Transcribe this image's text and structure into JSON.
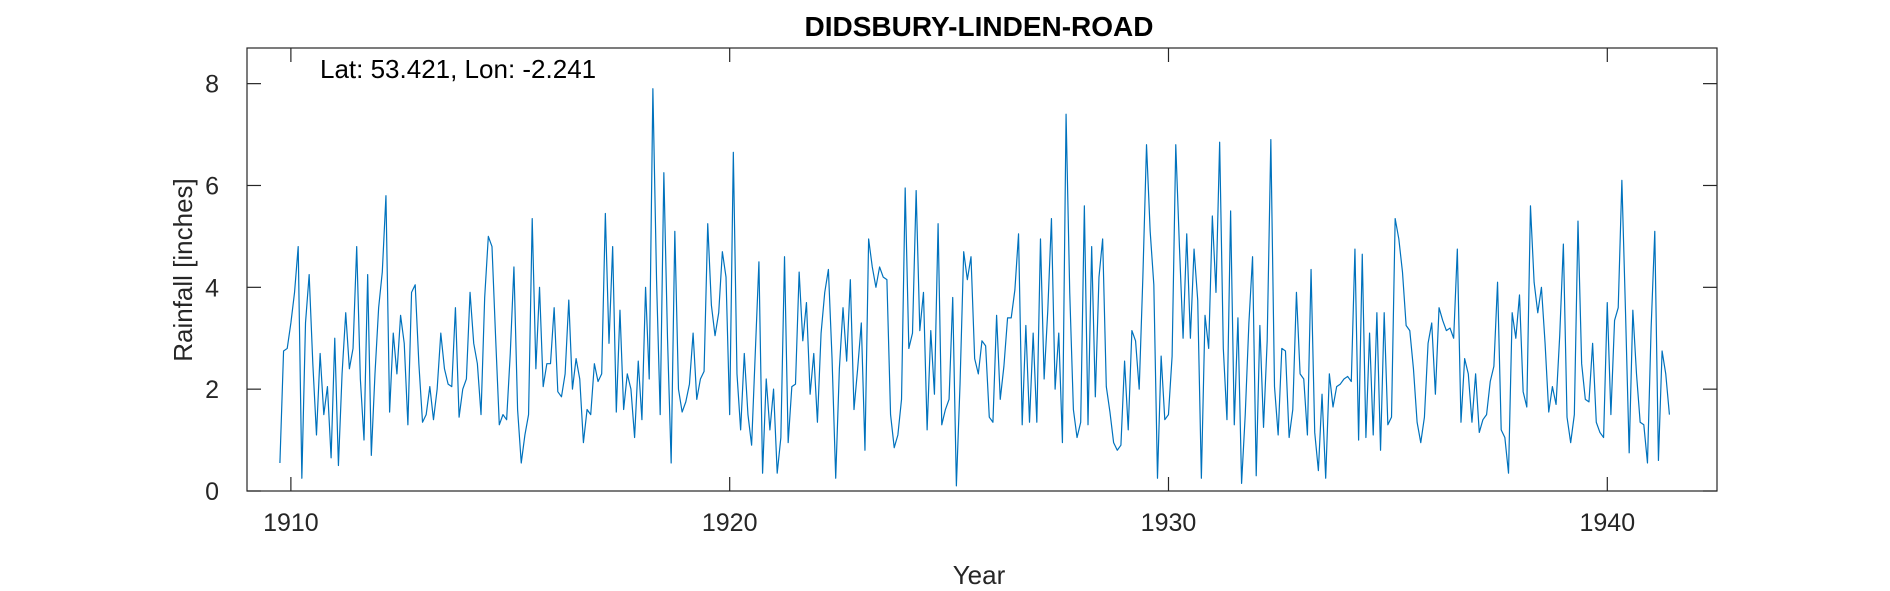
{
  "chart_data": {
    "type": "line",
    "title": "DIDSBURY-LINDEN-ROAD",
    "xlabel": "Year",
    "ylabel": "Rainfall [inches]",
    "annotation": "Lat: 53.421, Lon: -2.241",
    "xlim": [
      1909,
      1942.5
    ],
    "ylim": [
      0,
      8.7
    ],
    "xticks": [
      1910,
      1920,
      1930,
      1940
    ],
    "yticks": [
      0,
      2,
      4,
      6,
      8
    ],
    "grid": false,
    "line_color": "#0072bd",
    "series": [
      {
        "x_start": 1909.75,
        "x_step": 0.08333,
        "values": [
          0.55,
          2.75,
          2.8,
          3.3,
          3.9,
          4.8,
          0.25,
          3.3,
          4.25,
          2.5,
          1.1,
          2.7,
          1.5,
          2.05,
          0.65,
          3.0,
          0.5,
          2.3,
          3.5,
          2.4,
          2.8,
          4.8,
          2.2,
          1.0,
          4.25,
          0.7,
          2.3,
          3.6,
          4.3,
          5.8,
          1.55,
          3.1,
          2.3,
          3.45,
          2.9,
          1.3,
          3.9,
          4.05,
          2.5,
          1.35,
          1.5,
          2.05,
          1.4,
          2.0,
          3.1,
          2.4,
          2.1,
          2.05,
          3.6,
          1.45,
          2.0,
          2.2,
          3.9,
          2.9,
          2.5,
          1.5,
          3.8,
          5.0,
          4.8,
          3.0,
          1.3,
          1.5,
          1.4,
          2.7,
          4.4,
          1.6,
          0.55,
          1.1,
          1.5,
          5.35,
          2.4,
          4.0,
          2.05,
          2.5,
          2.5,
          3.6,
          1.95,
          1.85,
          2.3,
          3.75,
          2.0,
          2.6,
          2.2,
          0.95,
          1.6,
          1.5,
          2.5,
          2.15,
          2.3,
          5.45,
          2.9,
          4.8,
          1.55,
          3.55,
          1.6,
          2.3,
          2.0,
          1.05,
          2.55,
          1.4,
          4.0,
          2.2,
          7.9,
          4.15,
          1.5,
          6.25,
          3.0,
          0.55,
          5.1,
          2.0,
          1.55,
          1.75,
          2.1,
          3.1,
          1.8,
          2.2,
          2.35,
          5.25,
          3.65,
          3.05,
          3.5,
          4.7,
          4.2,
          1.5,
          6.65,
          2.3,
          1.2,
          2.7,
          1.5,
          0.9,
          2.7,
          4.5,
          0.35,
          2.2,
          1.2,
          2.0,
          0.35,
          1.05,
          4.6,
          0.95,
          2.05,
          2.1,
          4.3,
          2.95,
          3.7,
          1.9,
          2.7,
          1.35,
          3.1,
          3.9,
          4.35,
          2.6,
          0.25,
          2.4,
          3.6,
          2.55,
          4.15,
          1.6,
          2.4,
          3.3,
          0.8,
          4.95,
          4.4,
          4.0,
          4.4,
          4.2,
          4.15,
          1.5,
          0.85,
          1.1,
          1.8,
          5.95,
          2.8,
          3.1,
          5.9,
          3.15,
          3.9,
          1.2,
          3.15,
          1.9,
          5.25,
          1.3,
          1.6,
          1.8,
          3.8,
          0.1,
          2.1,
          4.7,
          4.15,
          4.6,
          2.6,
          2.3,
          2.95,
          2.85,
          1.45,
          1.35,
          3.45,
          1.8,
          2.45,
          3.4,
          3.4,
          3.95,
          5.05,
          1.3,
          3.25,
          1.35,
          3.1,
          1.35,
          4.95,
          2.2,
          3.55,
          5.35,
          2.0,
          3.1,
          0.95,
          7.4,
          3.9,
          1.6,
          1.05,
          1.35,
          5.6,
          1.3,
          4.8,
          1.85,
          4.2,
          4.95,
          2.05,
          1.55,
          0.95,
          0.8,
          0.9,
          2.55,
          1.2,
          3.15,
          2.95,
          2.0,
          4.2,
          6.8,
          5.1,
          4.05,
          0.25,
          2.65,
          1.4,
          1.5,
          2.65,
          6.8,
          4.8,
          3.0,
          5.05,
          3.0,
          4.75,
          3.75,
          0.25,
          3.45,
          2.8,
          5.4,
          3.9,
          6.85,
          2.8,
          1.4,
          5.5,
          1.3,
          3.4,
          0.15,
          1.5,
          3.3,
          4.6,
          0.3,
          3.25,
          1.25,
          2.95,
          6.9,
          2.05,
          1.1,
          2.8,
          2.75,
          1.05,
          1.6,
          3.9,
          2.3,
          2.2,
          1.1,
          4.35,
          1.15,
          0.4,
          1.9,
          0.25,
          2.3,
          1.65,
          2.05,
          2.1,
          2.2,
          2.25,
          2.15,
          4.75,
          1.0,
          4.65,
          1.05,
          3.1,
          1.1,
          3.5,
          0.8,
          3.5,
          1.3,
          1.45,
          5.35,
          4.95,
          4.3,
          3.25,
          3.15,
          2.4,
          1.35,
          0.95,
          1.45,
          2.9,
          3.3,
          1.9,
          3.6,
          3.35,
          3.15,
          3.2,
          3.0,
          4.75,
          1.35,
          2.6,
          2.3,
          1.35,
          2.3,
          1.15,
          1.4,
          1.5,
          2.15,
          2.45,
          4.1,
          1.2,
          1.05,
          0.35,
          3.5,
          3.0,
          3.85,
          1.95,
          1.65,
          5.6,
          4.1,
          3.5,
          4.0,
          2.9,
          1.55,
          2.05,
          1.7,
          3.05,
          4.85,
          1.45,
          0.95,
          1.5,
          5.3,
          2.5,
          1.8,
          1.75,
          2.9,
          1.35,
          1.15,
          1.05,
          3.7,
          1.5,
          3.35,
          3.6,
          6.1,
          3.5,
          0.75,
          3.55,
          2.3,
          1.35,
          1.3,
          0.55,
          3.2,
          5.1,
          0.6,
          2.75,
          2.3,
          1.5
        ]
      }
    ]
  }
}
